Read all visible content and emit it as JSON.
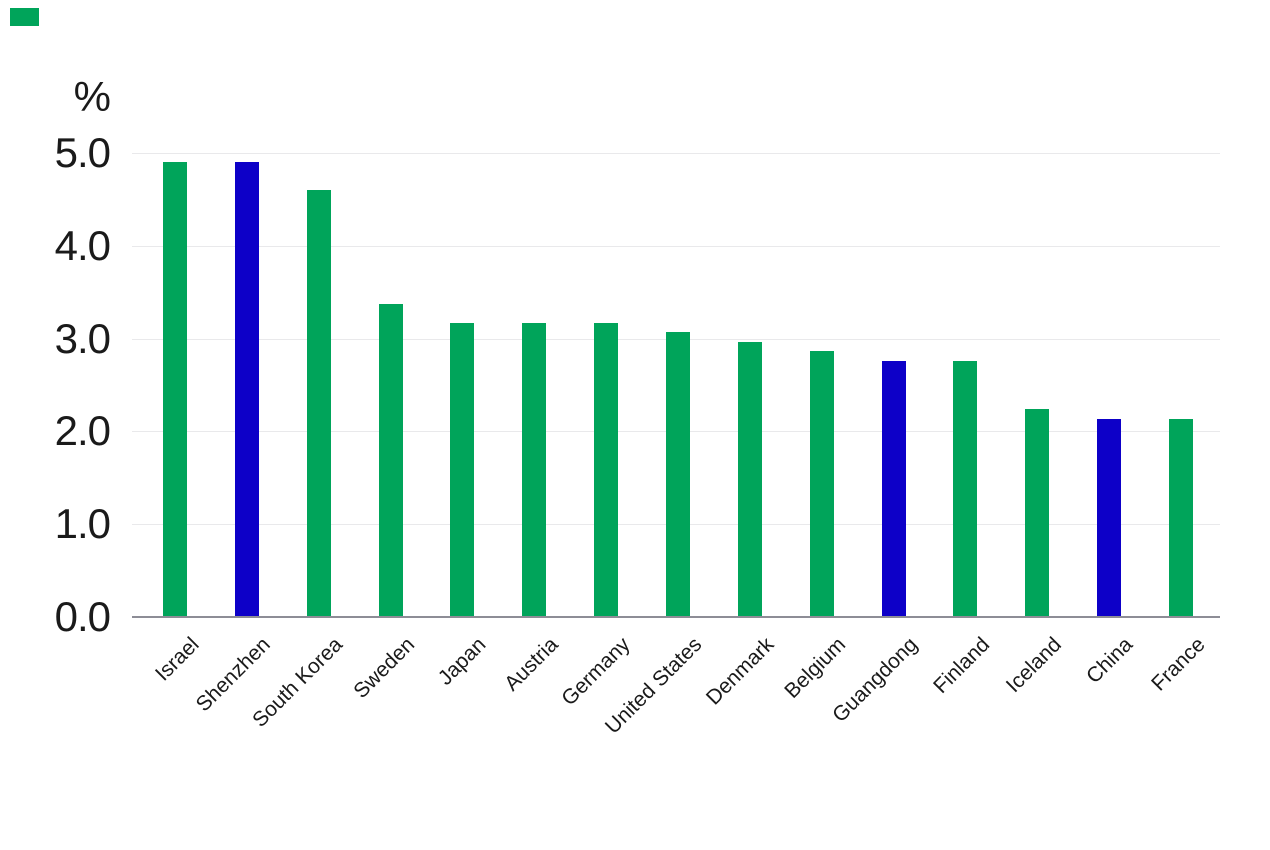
{
  "page": {
    "background": "#ffffff"
  },
  "brand": {
    "mark_color": "#00A45A"
  },
  "chart_data": {
    "type": "bar",
    "title": "",
    "unit_label": "%",
    "categories": [
      "Israel",
      "Shenzhen",
      "South Korea",
      "Sweden",
      "Japan",
      "Austria",
      "Germany",
      "United States",
      "Denmark",
      "Belgium",
      "Guangdong",
      "Finland",
      "Iceland",
      "China",
      "France"
    ],
    "values": [
      4.9,
      4.9,
      4.6,
      3.37,
      3.17,
      3.17,
      3.17,
      3.07,
      2.96,
      2.87,
      2.76,
      2.76,
      2.24,
      2.13,
      2.13
    ],
    "highlighted_categories": [
      "Shenzhen",
      "Guangdong",
      "China"
    ],
    "colors": {
      "bar_default": "#00A45A",
      "bar_highlight": "#0D00C8",
      "gridline": "#E9E9EB",
      "axis_line": "#8D8D96",
      "tick_text": "#1A1A1A"
    },
    "xlabel": "",
    "ylabel": "%",
    "ylim": [
      0,
      5
    ],
    "yticks": [
      0,
      1,
      2,
      3,
      4,
      5
    ],
    "ytick_labels": [
      "0.0",
      "1.0",
      "2.0",
      "3.0",
      "4.0",
      "5.0"
    ],
    "grid": "horizontal",
    "legend_position": "none",
    "x_label_rotation_deg": 45
  }
}
